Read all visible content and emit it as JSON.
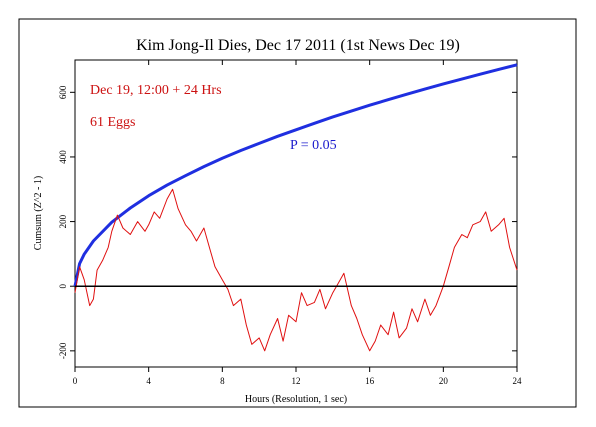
{
  "chart_data": {
    "type": "line",
    "title": "Kim Jong-Il Dies, Dec 17 2011 (1st News Dec 19)",
    "xlabel": "Hours (Resolution, 1 sec)",
    "ylabel": "Cumsum (Z^2 - 1)",
    "xlim": [
      0,
      24
    ],
    "ylim": [
      -250,
      700
    ],
    "xticks": [
      0,
      4,
      8,
      12,
      16,
      20,
      24
    ],
    "yticks": [
      -200,
      0,
      200,
      400,
      600
    ],
    "grid": false,
    "annotations": [
      {
        "text": "Dec 19, 12:00 + 24 Hrs",
        "color": "#cc1111"
      },
      {
        "text": "61 Eggs",
        "color": "#cc1111"
      },
      {
        "text": "P = 0.05",
        "color": "#1a1acc"
      }
    ],
    "series": [
      {
        "role": "significance envelope",
        "color": "#1f2fe0",
        "x": [
          0,
          0.25,
          0.5,
          1,
          2,
          3,
          4,
          5,
          6,
          7,
          8,
          9,
          10,
          11,
          12,
          13,
          14,
          15,
          16,
          17,
          18,
          19,
          20,
          21,
          22,
          23,
          24
        ],
        "values": [
          0,
          70,
          99,
          140,
          198,
          242,
          280,
          313,
          342,
          370,
          396,
          420,
          442,
          464,
          484,
          504,
          524,
          542,
          560,
          577,
          594,
          610,
          626,
          641,
          656,
          671,
          685
        ]
      },
      {
        "role": "cumulative deviation",
        "color": "#e01010",
        "x": [
          0,
          0.25,
          0.5,
          0.8,
          1.0,
          1.2,
          1.5,
          1.8,
          2.0,
          2.3,
          2.6,
          3.0,
          3.4,
          3.8,
          4.0,
          4.3,
          4.6,
          5.0,
          5.3,
          5.6,
          6.0,
          6.3,
          6.6,
          7.0,
          7.3,
          7.6,
          8.0,
          8.3,
          8.6,
          9.0,
          9.3,
          9.6,
          10.0,
          10.3,
          10.6,
          11.0,
          11.3,
          11.6,
          12.0,
          12.3,
          12.6,
          13.0,
          13.3,
          13.6,
          14.0,
          14.3,
          14.6,
          15.0,
          15.3,
          15.6,
          16.0,
          16.3,
          16.6,
          17.0,
          17.3,
          17.6,
          18.0,
          18.3,
          18.6,
          19.0,
          19.3,
          19.6,
          20.0,
          20.3,
          20.6,
          21.0,
          21.3,
          21.6,
          22.0,
          22.3,
          22.6,
          23.0,
          23.3,
          23.6,
          24.0
        ],
        "values": [
          -20,
          60,
          20,
          -60,
          -40,
          50,
          80,
          120,
          170,
          220,
          180,
          160,
          200,
          170,
          190,
          230,
          210,
          270,
          300,
          240,
          190,
          170,
          140,
          180,
          120,
          60,
          20,
          -10,
          -60,
          -40,
          -120,
          -180,
          -160,
          -200,
          -150,
          -100,
          -170,
          -90,
          -110,
          -20,
          -60,
          -50,
          -10,
          -70,
          -20,
          10,
          40,
          -60,
          -100,
          -150,
          -200,
          -170,
          -120,
          -150,
          -80,
          -160,
          -130,
          -70,
          -110,
          -40,
          -90,
          -60,
          0,
          60,
          120,
          160,
          150,
          190,
          200,
          230,
          170,
          190,
          210,
          120,
          50
        ]
      },
      {
        "role": "zero reference",
        "color": "#000000",
        "x": [
          0,
          24
        ],
        "values": [
          0,
          0
        ]
      }
    ]
  }
}
